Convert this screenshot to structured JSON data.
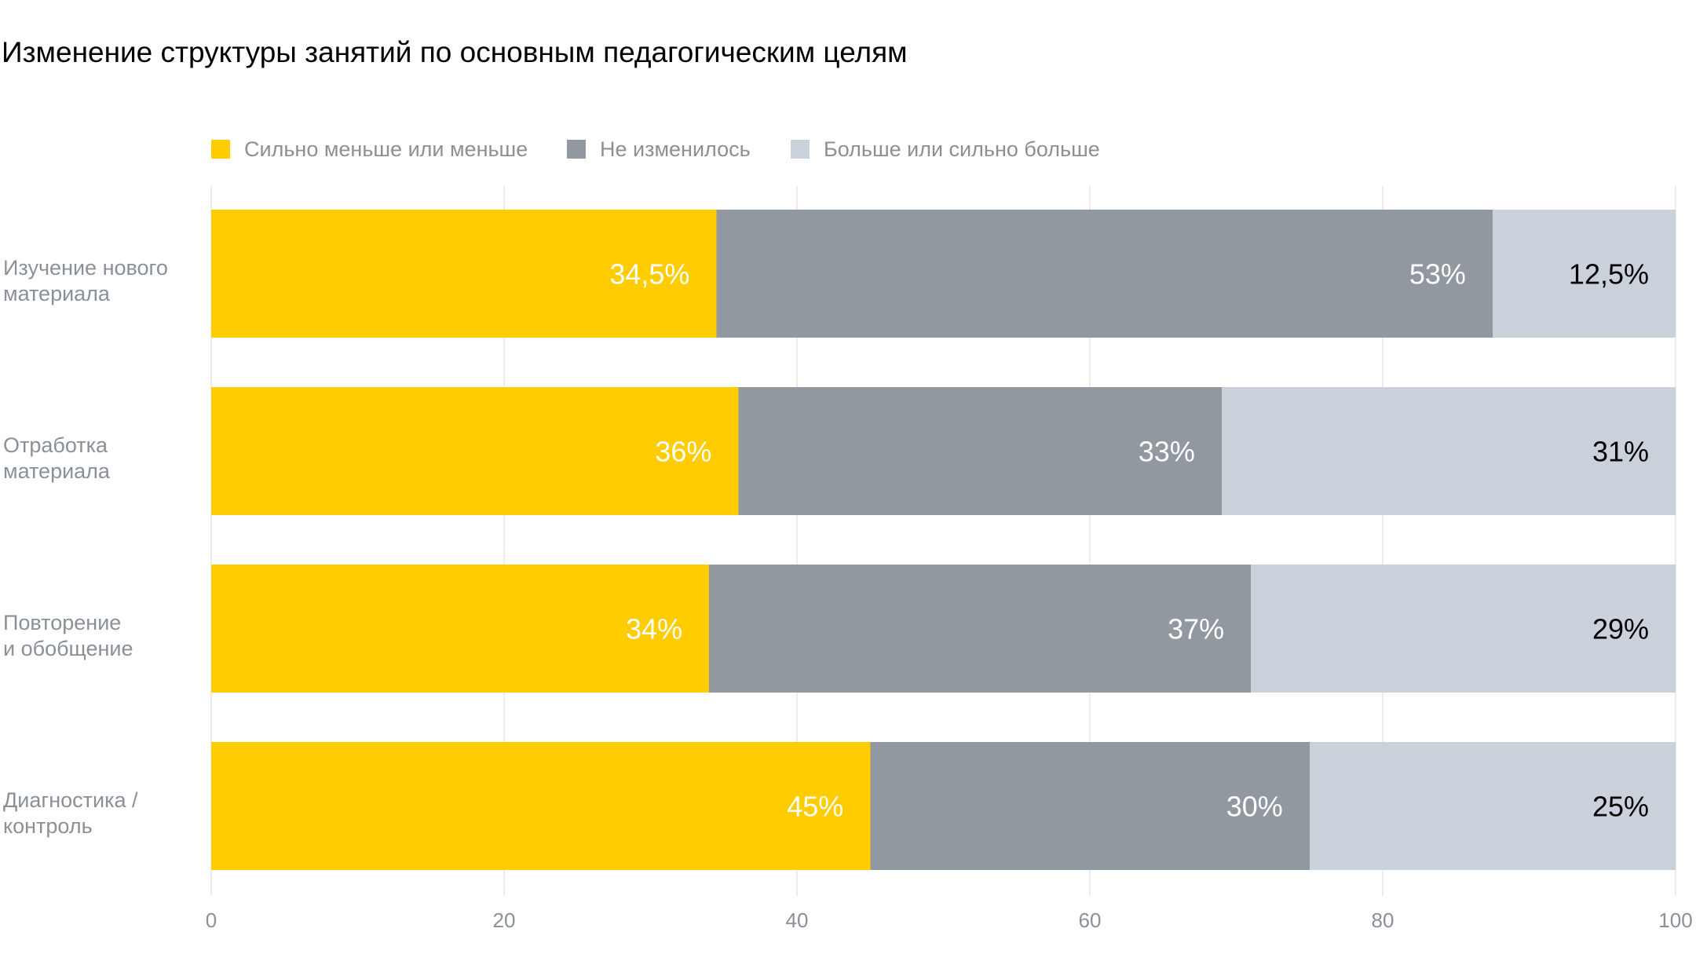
{
  "chart_data": {
    "type": "bar",
    "orientation": "horizontal",
    "stacked": true,
    "title": "Изменение структуры занятий по основным педагогическим целям",
    "categories": [
      "Изучение нового\nматериала",
      "Отработка\nматериала",
      "Повторение\nи обобщение",
      "Диагностика /\nконтроль"
    ],
    "series": [
      {
        "name": "Сильно меньше или меньше",
        "color": "#ffcc00",
        "label_color": "#ffffff",
        "values": [
          34.5,
          36,
          34,
          45
        ],
        "labels": [
          "34,5%",
          "36%",
          "34%",
          "45%"
        ]
      },
      {
        "name": "Не изменилось",
        "color": "#9198a0",
        "label_color": "#ffffff",
        "values": [
          53,
          33,
          37,
          30
        ],
        "labels": [
          "53%",
          "33%",
          "37%",
          "30%"
        ]
      },
      {
        "name": "Больше или сильно больше",
        "color": "#cbd1da",
        "label_color": "#000000",
        "values": [
          12.5,
          31,
          29,
          25
        ],
        "labels": [
          "12,5%",
          "31%",
          "29%",
          "25%"
        ]
      }
    ],
    "xlim": [
      0,
      100
    ],
    "xticks": [
      0,
      20,
      40,
      60,
      80,
      100
    ],
    "grid": true,
    "legend_position": "top-left"
  }
}
